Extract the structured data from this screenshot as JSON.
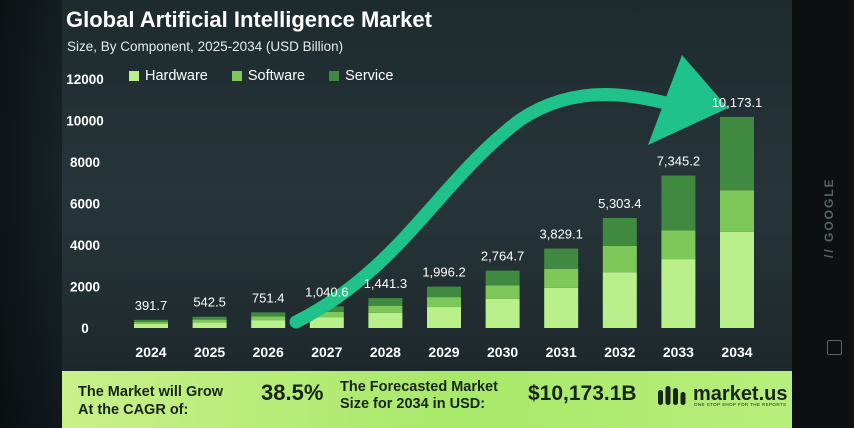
{
  "chart_data": {
    "type": "bar",
    "stacked": true,
    "title": "Global Artificial Intelligence Market",
    "subtitle": "Size, By Component, 2025-2034 (USD Billion)",
    "categories": [
      "2024",
      "2025",
      "2026",
      "2027",
      "2028",
      "2029",
      "2030",
      "2031",
      "2032",
      "2033",
      "2034"
    ],
    "series": [
      {
        "name": "Hardware",
        "color": "#b9f08c",
        "values": [
          200,
          275,
          380,
          525,
          730,
          1010,
          1400,
          1940,
          2690,
          3320,
          4640
        ]
      },
      {
        "name": "Software",
        "color": "#7ec85a",
        "values": [
          95,
          130,
          180,
          250,
          345,
          478,
          660,
          915,
          1270,
          1380,
          2000
        ]
      },
      {
        "name": "Service",
        "color": "#3f8a40",
        "values": [
          96.7,
          137.5,
          191.4,
          265,
          366.3,
          508.2,
          704.7,
          974.1,
          1343.4,
          2645.2,
          3533.1
        ]
      }
    ],
    "totals": [
      "391.7",
      "542.5",
      "751.4",
      "1,040.6",
      "1,441.3",
      "1,996.2",
      "2,764.7",
      "3,829.1",
      "5,303.4",
      "7,345.2",
      "10,173.1"
    ],
    "yticks": [
      "12000",
      "10000",
      "8000",
      "6000",
      "4000",
      "2000",
      "0"
    ],
    "ylim": [
      0,
      12000
    ],
    "legend_position": "top-left",
    "grid": false,
    "xlabel": "",
    "ylabel": ""
  },
  "footer": {
    "cagr_label_line1": "The Market will Grow",
    "cagr_label_line2": "At the CAGR of:",
    "cagr_value": "38.5%",
    "forecast_label_line1": "The Forecasted Market",
    "forecast_label_line2": "Size for 2034 in USD:",
    "forecast_value": "$10,173.1B",
    "brand": "market.us",
    "brand_tagline": "ONE STOP SHOP FOR THE REPORTS"
  },
  "watermark": {
    "text": "// GOOGLE"
  },
  "colors": {
    "accent_arrow": "#1fc28a",
    "footer_bg": "#b5ec78",
    "text_light": "#ffffff"
  }
}
